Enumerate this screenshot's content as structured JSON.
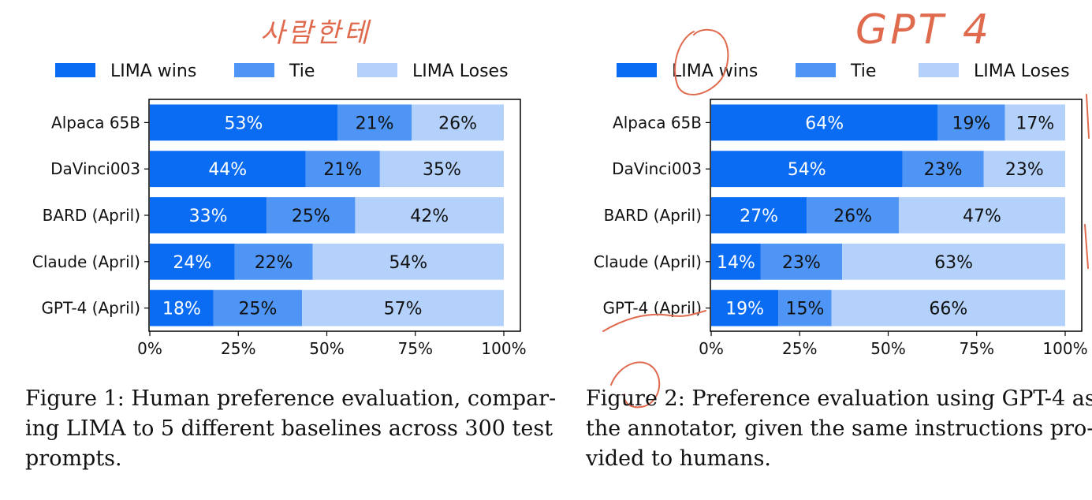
{
  "colors": {
    "wins": "#0a6cf2",
    "tie": "#4f95f5",
    "loses": "#b3d1fb",
    "annotation": "#e06a4e"
  },
  "chart_data": [
    {
      "type": "bar",
      "orientation": "horizontal",
      "stacked": true,
      "legend": {
        "entries": [
          "LIMA wins",
          "Tie",
          "LIMA Loses"
        ],
        "position": "top"
      },
      "categories": [
        "Alpaca 65B",
        "DaVinci003",
        "BARD (April)",
        "Claude (April)",
        "GPT-4 (April)"
      ],
      "series": [
        {
          "name": "LIMA wins",
          "values": [
            53,
            44,
            33,
            24,
            18
          ]
        },
        {
          "name": "Tie",
          "values": [
            21,
            21,
            25,
            22,
            25
          ]
        },
        {
          "name": "LIMA Loses",
          "values": [
            26,
            35,
            42,
            54,
            57
          ]
        }
      ],
      "xticks": [
        "0%",
        "25%",
        "50%",
        "75%",
        "100%"
      ],
      "xlim": [
        0,
        100
      ],
      "grid": false
    },
    {
      "type": "bar",
      "orientation": "horizontal",
      "stacked": true,
      "legend": {
        "entries": [
          "LIMA wins",
          "Tie",
          "LIMA Loses"
        ],
        "position": "top"
      },
      "categories": [
        "Alpaca 65B",
        "DaVinci003",
        "BARD (April)",
        "Claude (April)",
        "GPT-4 (April)"
      ],
      "series": [
        {
          "name": "LIMA wins",
          "values": [
            64,
            54,
            27,
            14,
            19
          ]
        },
        {
          "name": "Tie",
          "values": [
            19,
            23,
            26,
            23,
            15
          ]
        },
        {
          "name": "LIMA Loses",
          "values": [
            17,
            23,
            47,
            63,
            66
          ]
        }
      ],
      "xticks": [
        "0%",
        "25%",
        "50%",
        "75%",
        "100%"
      ],
      "xlim": [
        0,
        100
      ],
      "grid": false
    }
  ],
  "captions": {
    "fig1": [
      "Figure 1: Human preference evaluation, compar-",
      "ing LIMA to 5 different baselines across 300 test",
      "prompts."
    ],
    "fig2": [
      "Figure 2: Preference evaluation using GPT-4 as",
      "the annotator, given the same instructions pro-",
      "vided to humans."
    ]
  },
  "annotations": {
    "korean": "사람한테",
    "gpt4": "GPT 4"
  }
}
